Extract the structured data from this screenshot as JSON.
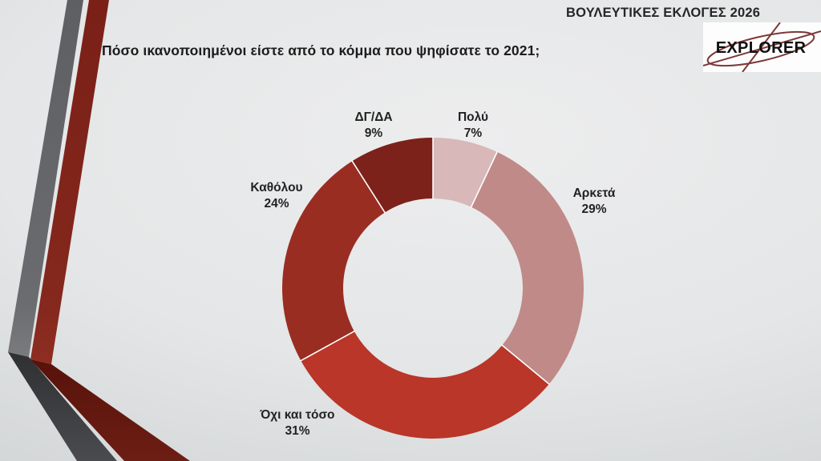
{
  "header": {
    "title": "ΒΟΥΛΕΥΤΙΚΕΣ ΕΚΛΟΓΕΣ 2026",
    "logo_text": "EXPLORER"
  },
  "decor": {
    "gray_band_color": "#5f6063",
    "red_band_color": "#7b2017",
    "background_top": "#ededee",
    "background_bottom": "#c9cdce"
  },
  "chart_data": {
    "type": "pie",
    "subtype": "donut",
    "title": "Πόσο ικανοποιημένοι είστε από το κόμμα που ψηφίσατε το 2021;",
    "start_angle_deg": 0,
    "direction": "clockwise",
    "inner_radius_ratio": 0.596,
    "separator_color": "#ffffff",
    "legend_position": "around-labels",
    "segments": [
      {
        "label": "Πολύ",
        "value": 7,
        "pct": "7%",
        "color": "#d8b8b8"
      },
      {
        "label": "Αρκετά",
        "value": 29,
        "pct": "29%",
        "color": "#c08a88"
      },
      {
        "label": "Όχι και τόσο",
        "value": 31,
        "pct": "31%",
        "color": "#b93629"
      },
      {
        "label": "Καθόλου",
        "value": 24,
        "pct": "24%",
        "color": "#9a2d22"
      },
      {
        "label": "ΔΓ/ΔΑ",
        "value": 9,
        "pct": "9%",
        "color": "#7c221a"
      }
    ]
  }
}
